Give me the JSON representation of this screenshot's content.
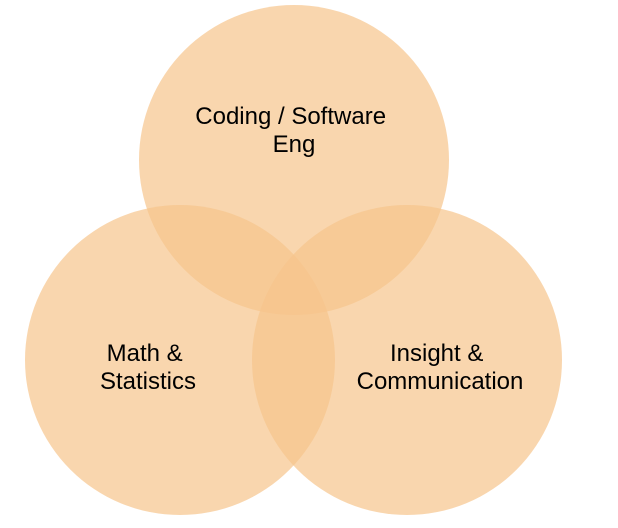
{
  "diagram": {
    "type": "venn",
    "circles": [
      {
        "id": "coding",
        "lines": [
          "Coding / Software",
          "Eng"
        ]
      },
      {
        "id": "math",
        "lines": [
          "Math &",
          "Statistics"
        ]
      },
      {
        "id": "insight",
        "lines": [
          "Insight &",
          "Communication"
        ]
      }
    ],
    "colors": {
      "fill": "#f7c48c",
      "fill_opacity": 0.7
    }
  }
}
